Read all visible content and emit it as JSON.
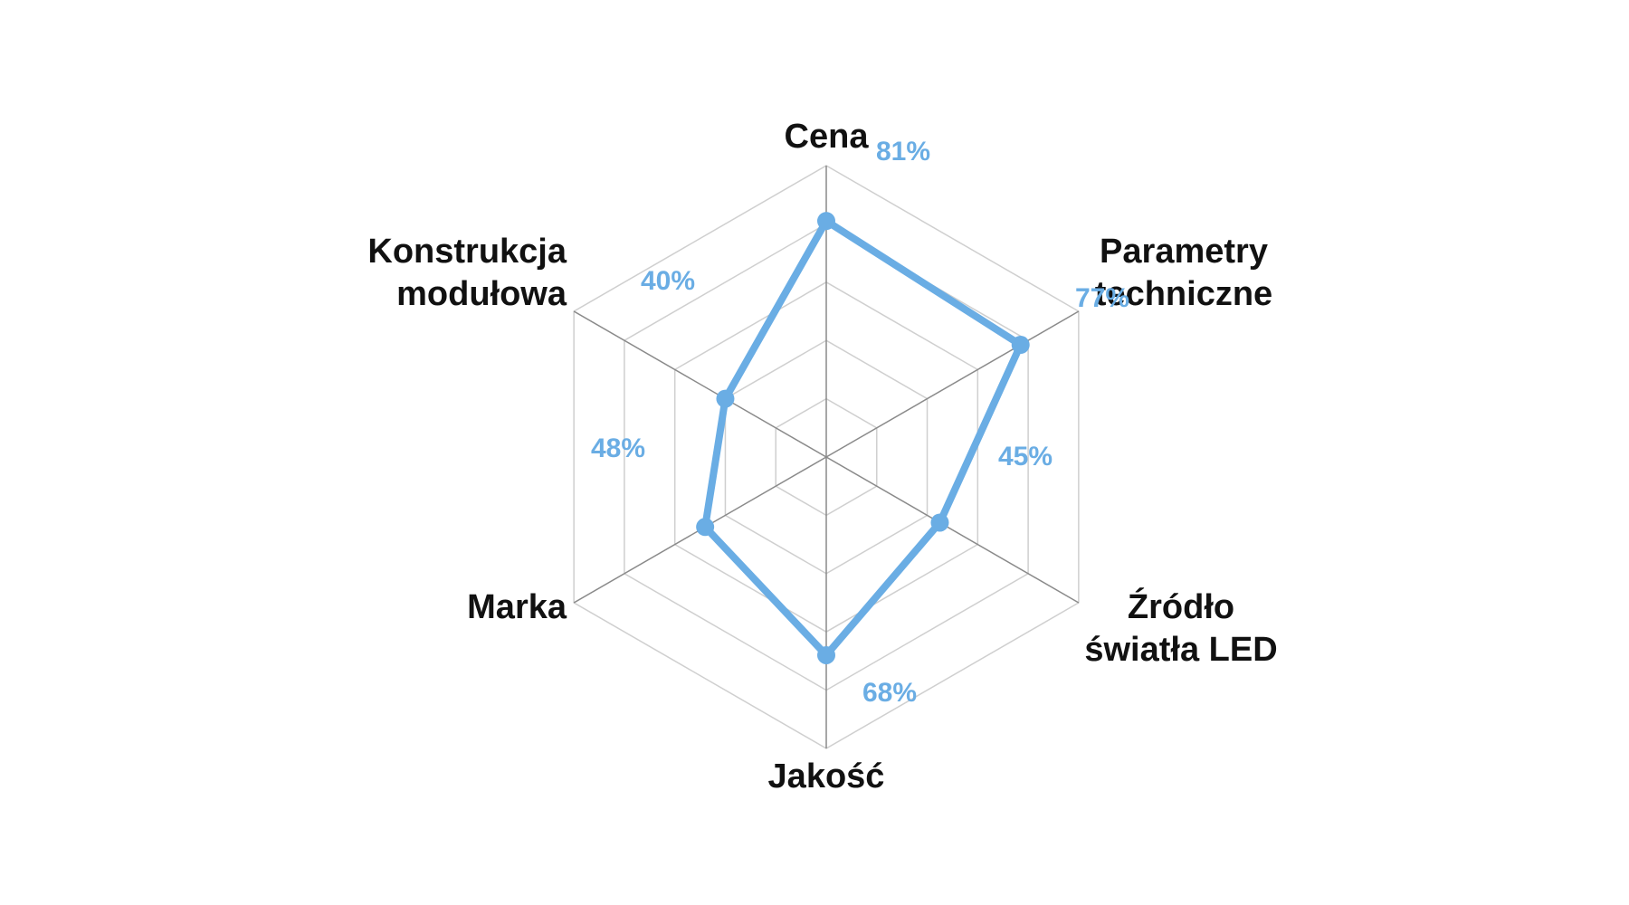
{
  "chart_data": {
    "type": "radar",
    "categories": [
      [
        "Cena"
      ],
      [
        "Parametry",
        "techniczne"
      ],
      [
        "Źródło",
        "światła LED"
      ],
      [
        "Jakość"
      ],
      [
        "Marka"
      ],
      [
        "Konstrukcja",
        "modułowa"
      ]
    ],
    "series": [
      {
        "values": [
          81,
          77,
          45,
          68,
          48,
          40
        ]
      }
    ],
    "value_labels": [
      "81%",
      "77%",
      "45%",
      "68%",
      "48%",
      "40%"
    ],
    "rmax": 100,
    "grid_levels": 5,
    "grid": true,
    "colors": {
      "series": "#6aade4",
      "grid": "#cfcfcf",
      "axis": "#8a8a8a",
      "text": "#111111"
    }
  }
}
